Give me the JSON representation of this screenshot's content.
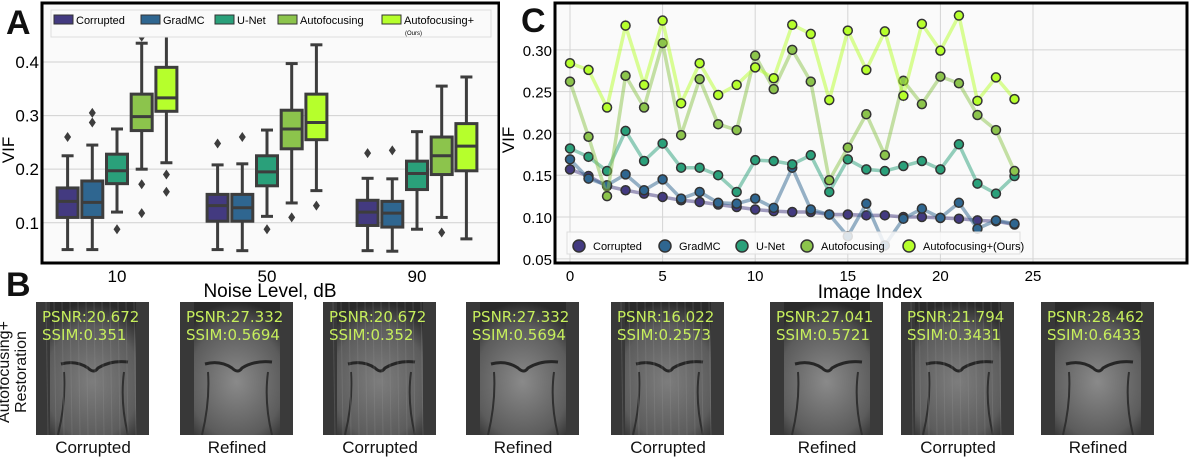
{
  "panels": {
    "a": "A",
    "b": "B",
    "c": "C"
  },
  "chart_data": [
    {
      "type": "box",
      "panel": "A",
      "xlabel": "Noise Level, dB",
      "ylabel": "VIF",
      "categories": [
        "10",
        "50",
        "90"
      ],
      "ylim": [
        0.025,
        0.51
      ],
      "yticks": [
        0.1,
        0.2,
        0.3,
        0.4
      ],
      "ytick_labels": [
        "0.1",
        "0.2",
        "0.3",
        "0.4"
      ],
      "grid": true,
      "legend": "top",
      "legend_note": "(Ours)",
      "series": [
        {
          "name": "Corrupted",
          "color": "#433a80",
          "boxes": [
            {
              "low": 0.05,
              "q1": 0.11,
              "median": 0.14,
              "q3": 0.165,
              "high": 0.225,
              "outliers": [
                0.26
              ]
            },
            {
              "low": 0.05,
              "q1": 0.103,
              "median": 0.132,
              "q3": 0.153,
              "high": 0.208,
              "outliers": [
                0.248
              ]
            },
            {
              "low": 0.048,
              "q1": 0.095,
              "median": 0.12,
              "q3": 0.142,
              "high": 0.183,
              "outliers": [
                0.23
              ]
            }
          ]
        },
        {
          "name": "GradMC",
          "color": "#2f6690",
          "boxes": [
            {
              "low": 0.05,
              "q1": 0.11,
              "median": 0.138,
              "q3": 0.178,
              "high": 0.245,
              "outliers": [
                0.287,
                0.305
              ]
            },
            {
              "low": 0.048,
              "q1": 0.103,
              "median": 0.128,
              "q3": 0.153,
              "high": 0.21,
              "outliers": [
                0.26
              ]
            },
            {
              "low": 0.047,
              "q1": 0.092,
              "median": 0.118,
              "q3": 0.14,
              "high": 0.182,
              "outliers": [
                0.235
              ]
            }
          ]
        },
        {
          "name": "U-Net",
          "color": "#2aa07a",
          "boxes": [
            {
              "low": 0.12,
              "q1": 0.173,
              "median": 0.197,
              "q3": 0.228,
              "high": 0.275,
              "outliers": [
                0.088
              ]
            },
            {
              "low": 0.112,
              "q1": 0.169,
              "median": 0.195,
              "q3": 0.225,
              "high": 0.273,
              "outliers": [
                0.088
              ]
            },
            {
              "low": 0.088,
              "q1": 0.162,
              "median": 0.192,
              "q3": 0.215,
              "high": 0.27,
              "outliers": []
            }
          ]
        },
        {
          "name": "Autofocusing",
          "color": "#8cc44c",
          "boxes": [
            {
              "low": 0.2,
              "q1": 0.272,
              "median": 0.298,
              "q3": 0.34,
              "high": 0.435,
              "outliers": [
                0.447,
                0.172,
                0.118
              ]
            },
            {
              "low": 0.137,
              "q1": 0.238,
              "median": 0.275,
              "q3": 0.31,
              "high": 0.397,
              "outliers": [
                0.11
              ]
            },
            {
              "low": 0.11,
              "q1": 0.19,
              "median": 0.225,
              "q3": 0.26,
              "high": 0.355,
              "outliers": [
                0.082
              ]
            }
          ]
        },
        {
          "name": "Autofocusing+",
          "color": "#b6ff2c",
          "boxes": [
            {
              "low": 0.212,
              "q1": 0.308,
              "median": 0.333,
              "q3": 0.39,
              "high": 0.49,
              "outliers": [
                0.19,
                0.158
              ]
            },
            {
              "low": 0.16,
              "q1": 0.255,
              "median": 0.287,
              "q3": 0.34,
              "high": 0.432,
              "outliers": [
                0.132
              ]
            },
            {
              "low": 0.07,
              "q1": 0.197,
              "median": 0.243,
              "q3": 0.285,
              "high": 0.372,
              "outliers": []
            }
          ]
        }
      ]
    },
    {
      "type": "line",
      "panel": "C",
      "xlabel": "Image Index",
      "ylabel": "VIF",
      "xlim": [
        -1.2,
        25.2
      ],
      "ylim": [
        0.045,
        0.356
      ],
      "xticks": [
        0,
        5,
        10,
        15,
        20,
        25
      ],
      "xtick_labels": [
        "0",
        "5",
        "10",
        "15",
        "20",
        "25"
      ],
      "yticks": [
        0.05,
        0.1,
        0.15,
        0.2,
        0.25,
        0.3
      ],
      "ytick_labels": [
        "0.05",
        "0.10",
        "0.15",
        "0.20",
        "0.25",
        "0.30"
      ],
      "grid": true,
      "legend": "bottom",
      "x": [
        0,
        1,
        2,
        3,
        4,
        5,
        6,
        7,
        8,
        9,
        10,
        11,
        12,
        13,
        14,
        15,
        16,
        17,
        18,
        19,
        20,
        21,
        22,
        23,
        24
      ],
      "series": [
        {
          "name": "Corrupted",
          "color": "#433a80",
          "values": [
            0.157,
            0.149,
            0.137,
            0.132,
            0.128,
            0.124,
            0.12,
            0.118,
            0.115,
            0.112,
            0.109,
            0.107,
            0.106,
            0.106,
            0.103,
            0.103,
            0.102,
            0.102,
            0.1,
            0.1,
            0.099,
            0.098,
            0.096,
            0.095,
            0.091
          ]
        },
        {
          "name": "GradMC",
          "color": "#2f6690",
          "values": [
            0.169,
            0.146,
            0.138,
            0.151,
            0.132,
            0.145,
            0.122,
            0.13,
            0.117,
            0.116,
            0.122,
            0.111,
            0.159,
            0.109,
            0.103,
            0.077,
            0.116,
            0.066,
            0.098,
            0.11,
            0.099,
            0.117,
            0.086,
            0.096,
            0.092
          ]
        },
        {
          "name": "U-Net",
          "color": "#2aa07a",
          "values": [
            0.182,
            0.172,
            0.155,
            0.203,
            0.167,
            0.188,
            0.159,
            0.159,
            0.15,
            0.13,
            0.168,
            0.167,
            0.163,
            0.174,
            0.13,
            0.169,
            0.157,
            0.155,
            0.161,
            0.167,
            0.157,
            0.187,
            0.14,
            0.128,
            0.149
          ]
        },
        {
          "name": "Autofocusing",
          "color": "#8cc44c",
          "values": [
            0.262,
            0.196,
            0.125,
            0.269,
            0.231,
            0.308,
            0.198,
            0.265,
            0.211,
            0.204,
            0.293,
            0.253,
            0.3,
            0.262,
            0.144,
            0.183,
            0.223,
            0.174,
            0.263,
            0.235,
            0.268,
            0.26,
            0.222,
            0.204,
            0.155
          ]
        },
        {
          "name": "Autofocusing+(Ours)",
          "color": "#b6ff2c",
          "values": [
            0.284,
            0.276,
            0.231,
            0.329,
            0.258,
            0.335,
            0.236,
            0.284,
            0.246,
            0.258,
            0.279,
            0.266,
            0.33,
            0.319,
            0.24,
            0.323,
            0.276,
            0.322,
            0.245,
            0.331,
            0.299,
            0.341,
            0.239,
            0.267,
            0.241
          ]
        }
      ]
    }
  ],
  "panel_b": {
    "row_label_1": "Autofocusing+",
    "row_label_2": "Restoration",
    "images": [
      {
        "label": "Corrupted",
        "psnr": "PSNR:20.672",
        "ssim": "SSIM:0.351"
      },
      {
        "label": "Refined",
        "psnr": "PSNR:27.332",
        "ssim": "SSIM:0.5694"
      },
      {
        "label": "Corrupted",
        "psnr": "PSNR:20.672",
        "ssim": "SSIM:0.352"
      },
      {
        "label": "Refined",
        "psnr": "PSNR:27.332",
        "ssim": "SSIM:0.5694"
      },
      {
        "label": "Corrupted",
        "psnr": "PSNR:16.022",
        "ssim": "SSIM:0.2573"
      },
      {
        "label": "Refined",
        "psnr": "PSNR:27.041",
        "ssim": "SSIM:0.5721"
      },
      {
        "label": "Corrupted",
        "psnr": "PSNR:21.794",
        "ssim": "SSIM:0.3431"
      },
      {
        "label": "Refined",
        "psnr": "PSNR:28.462",
        "ssim": "SSIM:0.6433"
      }
    ]
  }
}
